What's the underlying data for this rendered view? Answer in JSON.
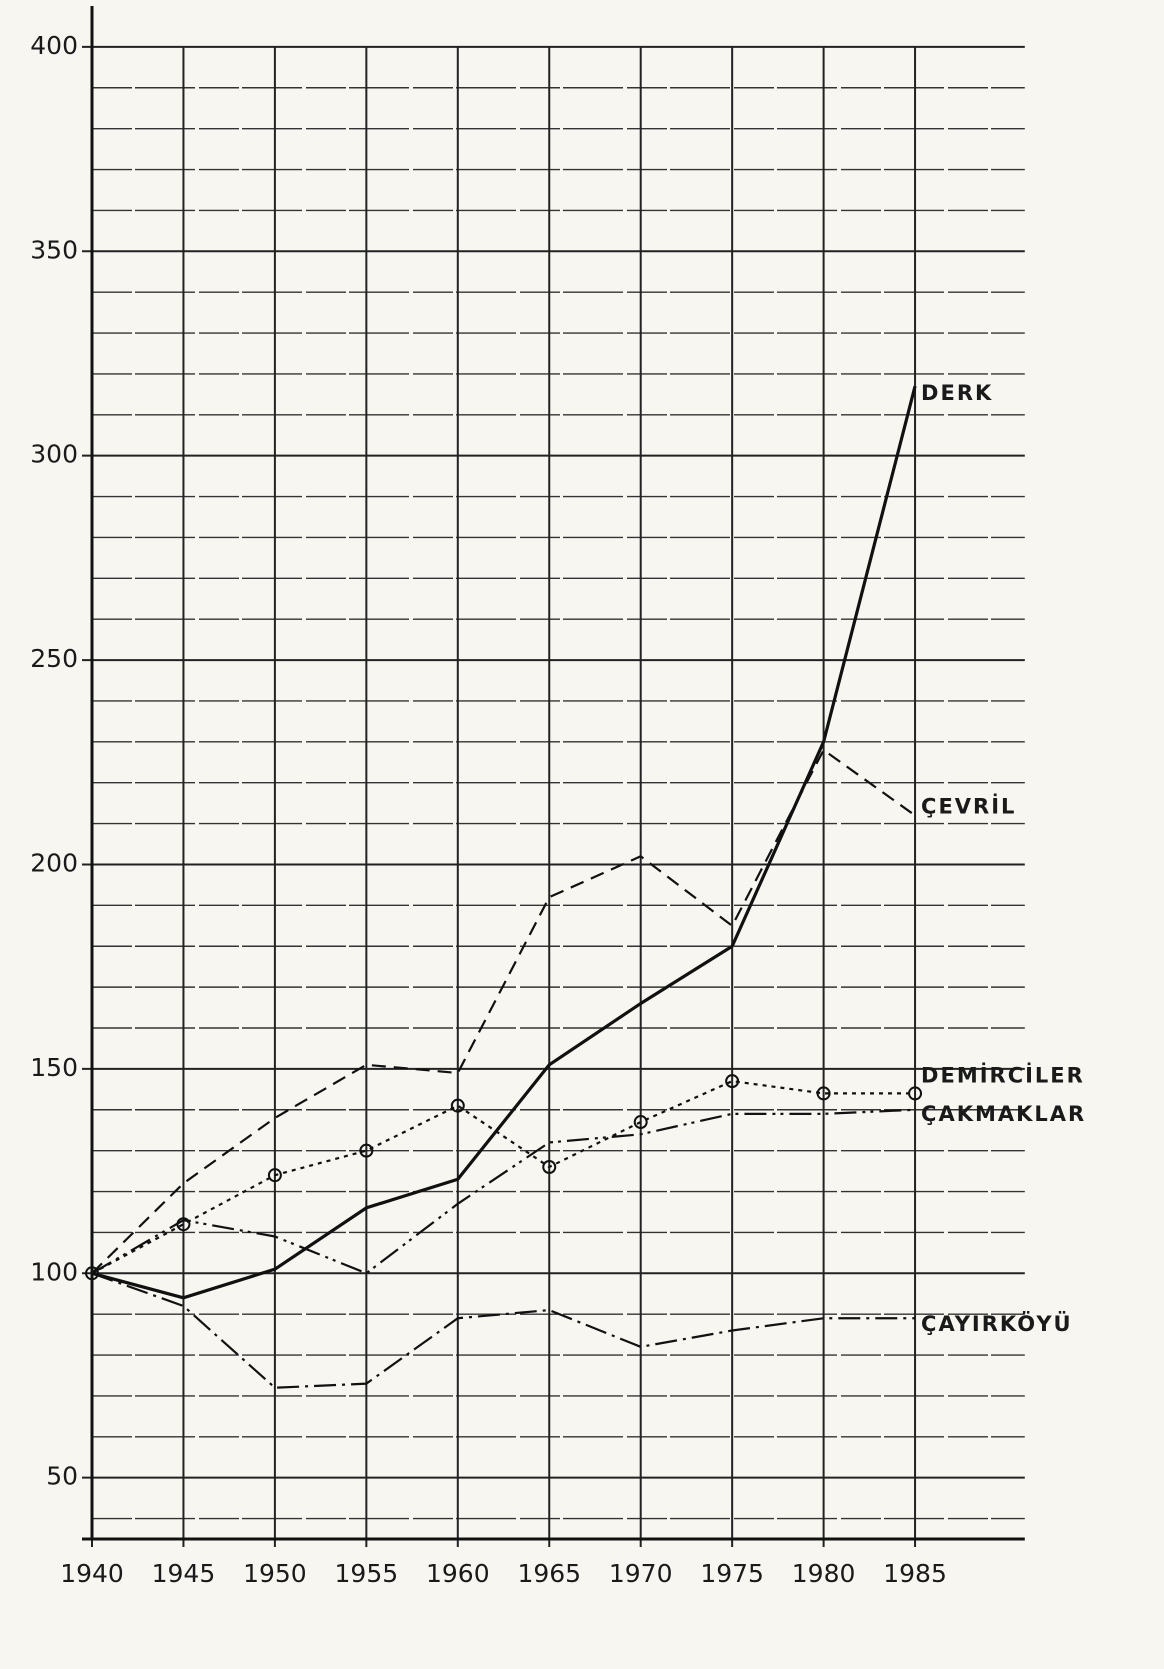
{
  "chart_data": {
    "type": "line",
    "x": [
      1940,
      1945,
      1950,
      1955,
      1960,
      1965,
      1970,
      1975,
      1980,
      1985
    ],
    "series": [
      {
        "name": "DERK",
        "color": "#111111",
        "dash": "solid",
        "values": [
          100,
          94,
          101,
          116,
          123,
          151,
          166,
          180,
          230,
          317
        ]
      },
      {
        "name": "ÇEVRİL",
        "color": "#111111",
        "dash": "dashed",
        "values": [
          100,
          122,
          138,
          151,
          149,
          192,
          202,
          185,
          228,
          212
        ]
      },
      {
        "name": "DEMİRCİLER",
        "color": "#111111",
        "dash": "dotted",
        "marker": "circle",
        "values": [
          100,
          112,
          124,
          130,
          141,
          126,
          137,
          147,
          144,
          144
        ]
      },
      {
        "name": "ÇAKMAKLAR",
        "color": "#111111",
        "dash": "dashdotdot",
        "values": [
          100,
          113,
          109,
          100,
          117,
          132,
          134,
          139,
          139,
          140
        ]
      },
      {
        "name": "ÇAYIRKÖYÜ",
        "color": "#111111",
        "dash": "dashdot",
        "values": [
          100,
          92,
          72,
          73,
          89,
          91,
          82,
          86,
          89,
          89
        ]
      }
    ],
    "xlim": [
      1940,
      1991
    ],
    "ylim": [
      35,
      410
    ],
    "xticks": [
      1940,
      1945,
      1950,
      1955,
      1960,
      1965,
      1970,
      1975,
      1980,
      1985
    ],
    "yticks": [
      50,
      100,
      150,
      200,
      250,
      300,
      350,
      400
    ],
    "yminorticks": [
      40,
      60,
      70,
      80,
      90,
      110,
      120,
      130,
      140,
      160,
      170,
      180,
      190,
      210,
      220,
      230,
      240,
      260,
      270,
      280,
      290,
      310,
      320,
      330,
      340,
      360,
      370,
      380,
      390
    ],
    "grid": true
  }
}
